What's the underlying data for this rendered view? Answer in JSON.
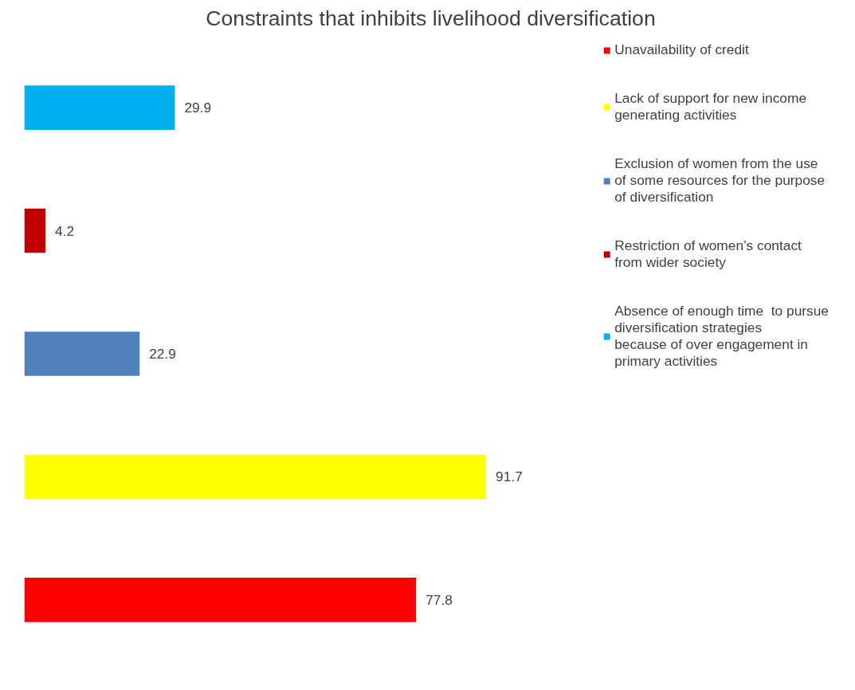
{
  "chart_data": {
    "type": "bar",
    "orientation": "horizontal",
    "stacked": true,
    "title": "Constraints that inhibits livelihood diversification",
    "categories": [
      null,
      null,
      null,
      null,
      null
    ],
    "series": [
      {
        "name": "Unavailability of credit",
        "color": "#ff0000",
        "values": [
          null,
          null,
          null,
          null,
          77.8
        ]
      },
      {
        "name": "Lack of support for new income generating activities",
        "color": "#ffff00",
        "values": [
          null,
          null,
          null,
          91.7,
          null
        ]
      },
      {
        "name": "Exclusion of women from the use of some resources for the purpose of diversification",
        "color": "#4f81bd",
        "values": [
          null,
          null,
          22.9,
          null,
          null
        ]
      },
      {
        "name": "Restriction of women’s contact from wider society",
        "color": "#c00000",
        "values": [
          null,
          4.2,
          null,
          null,
          null
        ]
      },
      {
        "name": "Absence of enough time  to pursue diversification strategies because of over engagement in primary activities",
        "color": "#00b0f0",
        "values": [
          29.9,
          null,
          null,
          null,
          null
        ]
      }
    ],
    "data_labels": true,
    "legend": "right",
    "grid": false
  }
}
